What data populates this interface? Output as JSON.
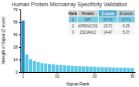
{
  "chart_data": {
    "type": "bar",
    "title": "Human Protein Microarray Specificity Validation",
    "x_label": "Signal Rank",
    "y_label": "Strength of Signal (Z score)",
    "categories": [
      "1",
      null,
      null,
      null,
      null,
      null,
      null,
      null,
      null,
      "10",
      null,
      null,
      null,
      null,
      null,
      null,
      null,
      null,
      null,
      "20",
      null,
      null,
      null,
      null,
      null,
      null,
      null,
      null,
      null,
      "30"
    ],
    "values": [
      57.43,
      19.72,
      14.47,
      12.5,
      11.2,
      10.1,
      9.5,
      9.0,
      8.6,
      8.2,
      7.9,
      7.6,
      7.4,
      7.1,
      6.9,
      6.7,
      6.5,
      6.3,
      6.1,
      5.9,
      5.7,
      5.6,
      5.4,
      5.3,
      5.1,
      5.0,
      4.9,
      4.8,
      4.7,
      4.6
    ],
    "colors": [
      "#1e90c8",
      "#5bc8e8",
      "#5bc8e8",
      "#5bc8e8",
      "#5bc8e8",
      "#5bc8e8",
      "#5bc8e8",
      "#5bc8e8",
      "#5bc8e8",
      "#5bc8e8",
      "#5bc8e8",
      "#5bc8e8",
      "#5bc8e8",
      "#5bc8e8",
      "#5bc8e8",
      "#5bc8e8",
      "#5bc8e8",
      "#5bc8e8",
      "#5bc8e8",
      "#5bc8e8",
      "#5bc8e8",
      "#5bc8e8",
      "#5bc8e8",
      "#5bc8e8",
      "#5bc8e8",
      "#5bc8e8",
      "#5bc8e8",
      "#5bc8e8",
      "#5bc8e8",
      "#5bc8e8"
    ],
    "ylim": [
      0,
      70
    ],
    "yticks": [
      0,
      14,
      28,
      42,
      56,
      70
    ],
    "table": {
      "headers": [
        "Rank",
        "Protein",
        "Z score",
        "S score"
      ],
      "rows": [
        [
          "1",
          "KIT",
          "57.43",
          "37.71"
        ],
        [
          "2",
          "APRIN/COS",
          "19.72",
          "5.25"
        ],
        [
          "3",
          "ZSCAN12",
          "14.47",
          "5.37"
        ]
      ]
    }
  }
}
